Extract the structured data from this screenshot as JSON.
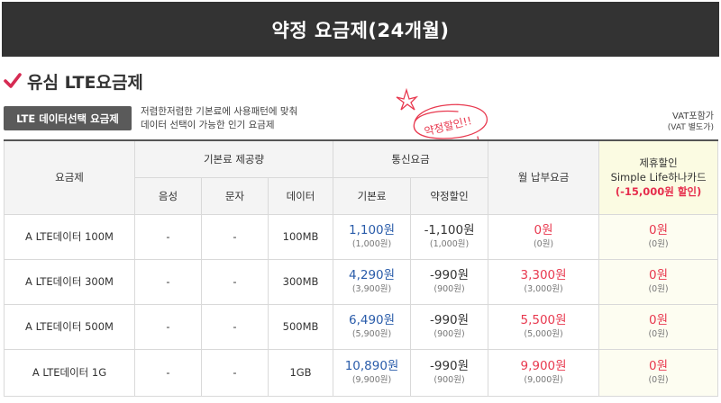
{
  "header": {
    "title": "약정 요금제(24개월)"
  },
  "section": {
    "title": "유심 LTE요금제"
  },
  "badge": {
    "label": "LTE 데이터선택 요금제"
  },
  "description": {
    "line1": "저렴한저렴한 기본료에 사용패턴에 맞춰",
    "line2": "데이터 선택이 가능한 인기 요금제"
  },
  "stamp": {
    "text": "약정할인!!"
  },
  "vat": {
    "line1": "VAT포함가",
    "line2": "(VAT 별도가)"
  },
  "colors": {
    "header_bg": "#333333",
    "accent_red": "#e8394f",
    "accent_blue": "#2a5caa",
    "check": "#d62b53",
    "promo_bg": "#fbfbe2"
  },
  "table": {
    "headers": {
      "plan": "요금제",
      "basic_provision": "기본료 제공량",
      "telecom_fee": "통신요금",
      "monthly": "월 납부요금",
      "promo_line1": "제휴할인",
      "promo_line2": "Simple Life하나카드",
      "promo_line3": "(-15,000원 할인)",
      "voice": "음성",
      "sms": "문자",
      "data": "데이터",
      "base_fee": "기본료",
      "contract_discount": "약정할인"
    },
    "rows": [
      {
        "plan": "A LTE데이터 100M",
        "voice": "-",
        "sms": "-",
        "data": "100MB",
        "base": "1,100원",
        "base_sub": "(1,000원)",
        "disc": "-1,100원",
        "disc_sub": "(1,000원)",
        "monthly": "0원",
        "monthly_sub": "(0원)",
        "promo": "0원",
        "promo_sub": "(0원)"
      },
      {
        "plan": "A LTE데이터 300M",
        "voice": "-",
        "sms": "-",
        "data": "300MB",
        "base": "4,290원",
        "base_sub": "(3,900원)",
        "disc": "-990원",
        "disc_sub": "(900원)",
        "monthly": "3,300원",
        "monthly_sub": "(3,000원)",
        "promo": "0원",
        "promo_sub": "(0원)"
      },
      {
        "plan": "A LTE데이터 500M",
        "voice": "-",
        "sms": "-",
        "data": "500MB",
        "base": "6,490원",
        "base_sub": "(5,900원)",
        "disc": "-990원",
        "disc_sub": "(900원)",
        "monthly": "5,500원",
        "monthly_sub": "(5,000원)",
        "promo": "0원",
        "promo_sub": "(0원)"
      },
      {
        "plan": "A LTE데이터 1G",
        "voice": "-",
        "sms": "-",
        "data": "1GB",
        "base": "10,890원",
        "base_sub": "(9,900원)",
        "disc": "-990원",
        "disc_sub": "(900원)",
        "monthly": "9,900원",
        "monthly_sub": "(9,000원)",
        "promo": "0원",
        "promo_sub": "(0원)"
      }
    ]
  }
}
